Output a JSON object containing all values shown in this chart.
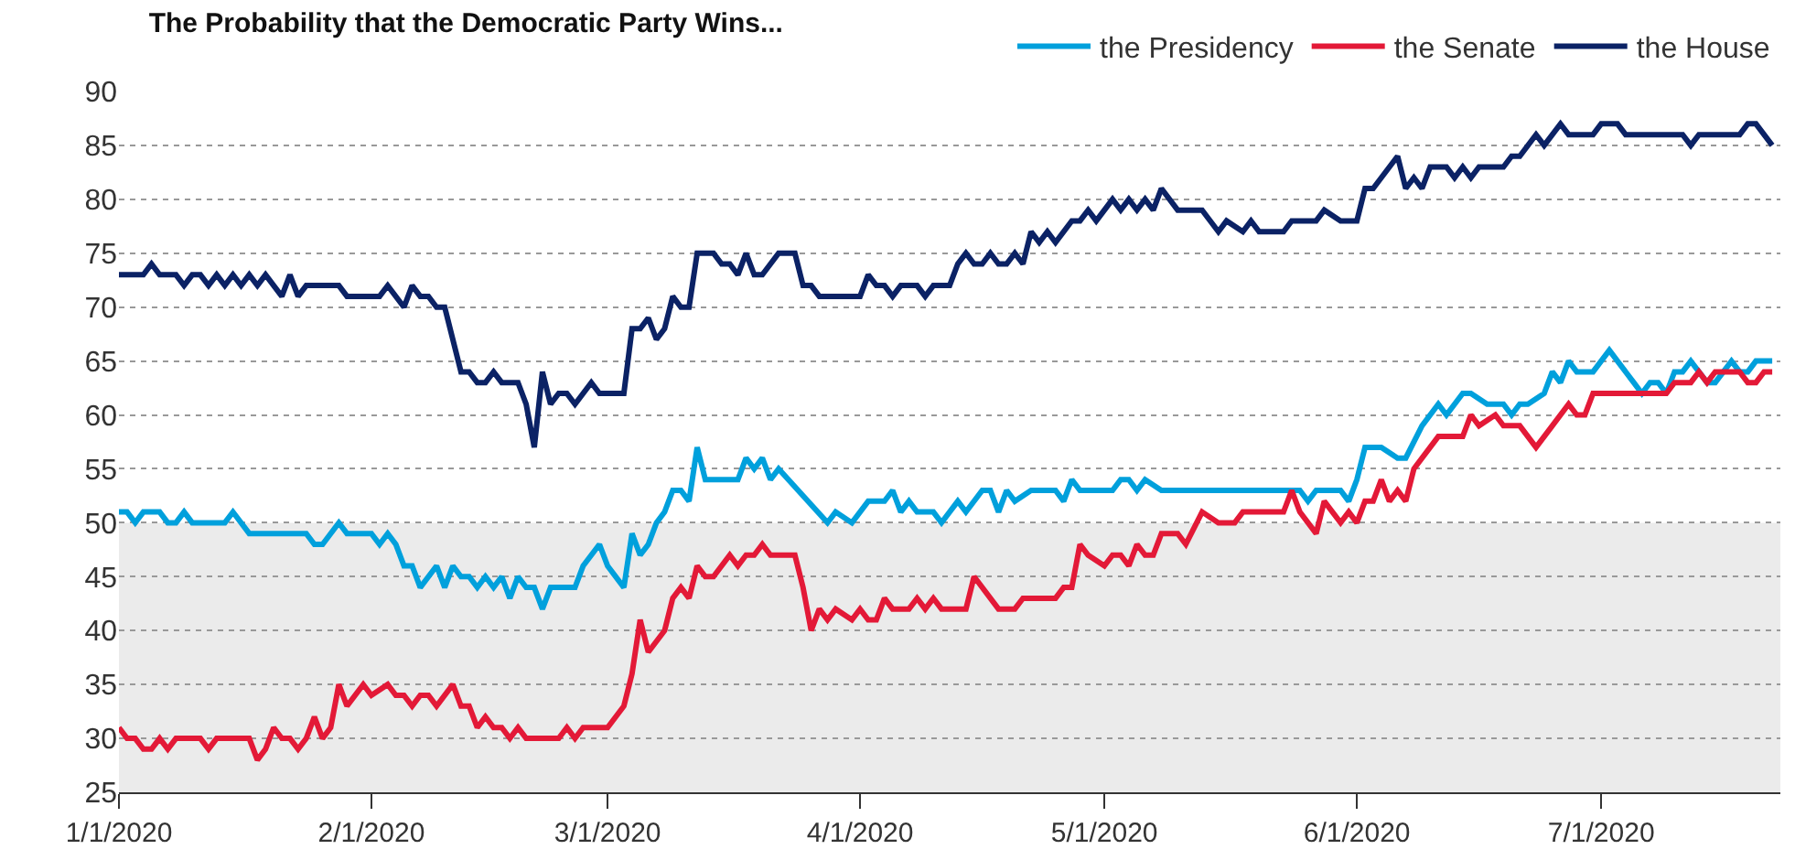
{
  "chart_data": {
    "type": "line",
    "title": "The Probability that the Democratic Party Wins...",
    "xlim": [
      "2020-01-01",
      "2020-07-23"
    ],
    "xticks": [
      {
        "value": "2020-01-01",
        "label": "1/1/2020"
      },
      {
        "value": "2020-02-01",
        "label": "2/1/2020"
      },
      {
        "value": "2020-03-01",
        "label": "3/1/2020"
      },
      {
        "value": "2020-04-01",
        "label": "4/1/2020"
      },
      {
        "value": "2020-05-01",
        "label": "5/1/2020"
      },
      {
        "value": "2020-06-01",
        "label": "6/1/2020"
      },
      {
        "value": "2020-07-01",
        "label": "7/1/2020"
      }
    ],
    "ylim": [
      25,
      90
    ],
    "yticks": [
      25,
      30,
      35,
      40,
      45,
      50,
      55,
      60,
      65,
      70,
      75,
      80,
      85,
      90
    ],
    "grid": "y",
    "legend": "top right",
    "bands": [
      {
        "axis": "y",
        "from": 25,
        "to": 50,
        "color": "#ebebeb"
      }
    ],
    "series": [
      {
        "name": "the Presidency",
        "color": "#00a0dc",
        "x": [
          "2020-01-01",
          "2020-01-02",
          "2020-01-03",
          "2020-01-04",
          "2020-01-06",
          "2020-01-07",
          "2020-01-08",
          "2020-01-09",
          "2020-01-10",
          "2020-01-14",
          "2020-01-15",
          "2020-01-17",
          "2020-01-24",
          "2020-01-25",
          "2020-01-26",
          "2020-01-28",
          "2020-01-29",
          "2020-02-01",
          "2020-02-02",
          "2020-02-03",
          "2020-02-04",
          "2020-02-05",
          "2020-02-06",
          "2020-02-07",
          "2020-02-09",
          "2020-02-10",
          "2020-02-11",
          "2020-02-12",
          "2020-02-13",
          "2020-02-14",
          "2020-02-15",
          "2020-02-16",
          "2020-02-17",
          "2020-02-18",
          "2020-02-19",
          "2020-02-20",
          "2020-02-21",
          "2020-02-22",
          "2020-02-23",
          "2020-02-26",
          "2020-02-27",
          "2020-02-29",
          "2020-03-01",
          "2020-03-03",
          "2020-03-04",
          "2020-03-05",
          "2020-03-06",
          "2020-03-07",
          "2020-03-08",
          "2020-03-09",
          "2020-03-10",
          "2020-03-11",
          "2020-03-12",
          "2020-03-13",
          "2020-03-17",
          "2020-03-18",
          "2020-03-19",
          "2020-03-20",
          "2020-03-21",
          "2020-03-22",
          "2020-03-28",
          "2020-03-29",
          "2020-03-31",
          "2020-04-02",
          "2020-04-04",
          "2020-04-05",
          "2020-04-06",
          "2020-04-07",
          "2020-04-08",
          "2020-04-10",
          "2020-04-11",
          "2020-04-13",
          "2020-04-14",
          "2020-04-16",
          "2020-04-17",
          "2020-04-18",
          "2020-04-19",
          "2020-04-20",
          "2020-04-22",
          "2020-04-25",
          "2020-04-26",
          "2020-04-27",
          "2020-04-28",
          "2020-05-02",
          "2020-05-03",
          "2020-05-04",
          "2020-05-05",
          "2020-05-06",
          "2020-05-08",
          "2020-05-24",
          "2020-05-25",
          "2020-05-26",
          "2020-05-27",
          "2020-05-30",
          "2020-05-31",
          "2020-06-01",
          "2020-06-02",
          "2020-06-04",
          "2020-06-06",
          "2020-06-07",
          "2020-06-09",
          "2020-06-11",
          "2020-06-12",
          "2020-06-14",
          "2020-06-15",
          "2020-06-17",
          "2020-06-19",
          "2020-06-20",
          "2020-06-21",
          "2020-06-22",
          "2020-06-24",
          "2020-06-25",
          "2020-06-26",
          "2020-06-27",
          "2020-06-28",
          "2020-06-30",
          "2020-07-02",
          "2020-07-03",
          "2020-07-05",
          "2020-07-06",
          "2020-07-07",
          "2020-07-08",
          "2020-07-09",
          "2020-07-10",
          "2020-07-11",
          "2020-07-12",
          "2020-07-13",
          "2020-07-14",
          "2020-07-15",
          "2020-07-17",
          "2020-07-18",
          "2020-07-19",
          "2020-07-20",
          "2020-07-22"
        ],
        "values": [
          51,
          51,
          50,
          51,
          51,
          50,
          50,
          51,
          50,
          50,
          51,
          49,
          49,
          48,
          48,
          50,
          49,
          49,
          48,
          49,
          48,
          46,
          46,
          44,
          46,
          44,
          46,
          45,
          45,
          44,
          45,
          44,
          45,
          43,
          45,
          44,
          44,
          42,
          44,
          44,
          46,
          48,
          46,
          44,
          49,
          47,
          48,
          50,
          51,
          53,
          53,
          52,
          57,
          54,
          54,
          56,
          55,
          56,
          54,
          55,
          50,
          51,
          50,
          52,
          52,
          53,
          51,
          52,
          51,
          51,
          50,
          52,
          51,
          53,
          53,
          51,
          53,
          52,
          53,
          53,
          52,
          54,
          53,
          53,
          54,
          54,
          53,
          54,
          53,
          53,
          53,
          52,
          53,
          53,
          52,
          54,
          57,
          57,
          56,
          56,
          59,
          61,
          60,
          62,
          62,
          61,
          61,
          60,
          61,
          61,
          62,
          64,
          63,
          65,
          64,
          64,
          66,
          65,
          63,
          62,
          63,
          63,
          62,
          64,
          64,
          65,
          64,
          63,
          63,
          65,
          64,
          64,
          65,
          65
        ]
      },
      {
        "name": "the Senate",
        "color": "#e31937",
        "x": [
          "2020-01-01",
          "2020-01-02",
          "2020-01-03",
          "2020-01-04",
          "2020-01-05",
          "2020-01-06",
          "2020-01-07",
          "2020-01-08",
          "2020-01-11",
          "2020-01-12",
          "2020-01-13",
          "2020-01-17",
          "2020-01-18",
          "2020-01-19",
          "2020-01-20",
          "2020-01-21",
          "2020-01-22",
          "2020-01-23",
          "2020-01-24",
          "2020-01-25",
          "2020-01-26",
          "2020-01-27",
          "2020-01-28",
          "2020-01-29",
          "2020-01-31",
          "2020-02-01",
          "2020-02-03",
          "2020-02-04",
          "2020-02-05",
          "2020-02-06",
          "2020-02-07",
          "2020-02-08",
          "2020-02-09",
          "2020-02-11",
          "2020-02-12",
          "2020-02-13",
          "2020-02-14",
          "2020-02-15",
          "2020-02-16",
          "2020-02-17",
          "2020-02-18",
          "2020-02-19",
          "2020-02-20",
          "2020-02-24",
          "2020-02-25",
          "2020-02-26",
          "2020-02-27",
          "2020-03-01",
          "2020-03-03",
          "2020-03-04",
          "2020-03-05",
          "2020-03-06",
          "2020-03-08",
          "2020-03-09",
          "2020-03-10",
          "2020-03-11",
          "2020-03-12",
          "2020-03-13",
          "2020-03-14",
          "2020-03-16",
          "2020-03-17",
          "2020-03-18",
          "2020-03-19",
          "2020-03-20",
          "2020-03-21",
          "2020-03-24",
          "2020-03-25",
          "2020-03-26",
          "2020-03-27",
          "2020-03-28",
          "2020-03-29",
          "2020-03-31",
          "2020-04-01",
          "2020-04-02",
          "2020-04-03",
          "2020-04-04",
          "2020-04-05",
          "2020-04-07",
          "2020-04-08",
          "2020-04-09",
          "2020-04-10",
          "2020-04-11",
          "2020-04-14",
          "2020-04-15",
          "2020-04-18",
          "2020-04-20",
          "2020-04-21",
          "2020-04-25",
          "2020-04-26",
          "2020-04-27",
          "2020-04-28",
          "2020-04-29",
          "2020-05-01",
          "2020-05-02",
          "2020-05-03",
          "2020-05-04",
          "2020-05-05",
          "2020-05-06",
          "2020-05-07",
          "2020-05-08",
          "2020-05-10",
          "2020-05-11",
          "2020-05-13",
          "2020-05-15",
          "2020-05-17",
          "2020-05-18",
          "2020-05-23",
          "2020-05-24",
          "2020-05-25",
          "2020-05-27",
          "2020-05-28",
          "2020-05-30",
          "2020-05-31",
          "2020-06-01",
          "2020-06-02",
          "2020-06-03",
          "2020-06-04",
          "2020-06-05",
          "2020-06-06",
          "2020-06-07",
          "2020-06-08",
          "2020-06-11",
          "2020-06-14",
          "2020-06-15",
          "2020-06-16",
          "2020-06-18",
          "2020-06-19",
          "2020-06-21",
          "2020-06-23",
          "2020-06-25",
          "2020-06-27",
          "2020-06-28",
          "2020-06-29",
          "2020-06-30",
          "2020-07-09",
          "2020-07-10",
          "2020-07-12",
          "2020-07-13",
          "2020-07-14",
          "2020-07-15",
          "2020-07-18",
          "2020-07-19",
          "2020-07-20",
          "2020-07-21",
          "2020-07-22"
        ],
        "values": [
          31,
          30,
          30,
          29,
          29,
          30,
          29,
          30,
          30,
          29,
          30,
          30,
          28,
          29,
          31,
          30,
          30,
          29,
          30,
          32,
          30,
          31,
          35,
          33,
          35,
          34,
          35,
          34,
          34,
          33,
          34,
          34,
          33,
          35,
          33,
          33,
          31,
          32,
          31,
          31,
          30,
          31,
          30,
          30,
          31,
          30,
          31,
          31,
          33,
          36,
          41,
          38,
          40,
          43,
          44,
          43,
          46,
          45,
          45,
          47,
          46,
          47,
          47,
          48,
          47,
          47,
          44,
          40,
          42,
          41,
          42,
          41,
          42,
          41,
          41,
          43,
          42,
          42,
          43,
          42,
          43,
          42,
          42,
          45,
          42,
          42,
          43,
          43,
          44,
          44,
          48,
          47,
          46,
          47,
          47,
          46,
          48,
          47,
          47,
          49,
          49,
          48,
          51,
          50,
          50,
          51,
          51,
          53,
          51,
          49,
          52,
          50,
          51,
          50,
          52,
          52,
          54,
          52,
          53,
          52,
          55,
          58,
          58,
          60,
          59,
          60,
          59,
          59,
          57,
          59,
          61,
          60,
          60,
          62,
          62,
          63,
          63,
          64,
          63,
          64,
          64,
          63,
          63,
          64,
          64
        ]
      },
      {
        "name": "the House",
        "color": "#0b2265",
        "x": [
          "2020-01-01",
          "2020-01-04",
          "2020-01-05",
          "2020-01-06",
          "2020-01-08",
          "2020-01-09",
          "2020-01-10",
          "2020-01-11",
          "2020-01-12",
          "2020-01-13",
          "2020-01-14",
          "2020-01-15",
          "2020-01-16",
          "2020-01-17",
          "2020-01-18",
          "2020-01-19",
          "2020-01-21",
          "2020-01-22",
          "2020-01-23",
          "2020-01-24",
          "2020-01-28",
          "2020-01-29",
          "2020-02-02",
          "2020-02-03",
          "2020-02-05",
          "2020-02-06",
          "2020-02-07",
          "2020-02-08",
          "2020-02-09",
          "2020-02-10",
          "2020-02-12",
          "2020-02-13",
          "2020-02-14",
          "2020-02-15",
          "2020-02-16",
          "2020-02-17",
          "2020-02-19",
          "2020-02-20",
          "2020-02-21",
          "2020-02-22",
          "2020-02-23",
          "2020-02-24",
          "2020-02-25",
          "2020-02-26",
          "2020-02-28",
          "2020-02-29",
          "2020-03-03",
          "2020-03-04",
          "2020-03-05",
          "2020-03-06",
          "2020-03-07",
          "2020-03-08",
          "2020-03-09",
          "2020-03-10",
          "2020-03-11",
          "2020-03-12",
          "2020-03-14",
          "2020-03-15",
          "2020-03-16",
          "2020-03-17",
          "2020-03-18",
          "2020-03-19",
          "2020-03-20",
          "2020-03-22",
          "2020-03-24",
          "2020-03-25",
          "2020-03-26",
          "2020-03-27",
          "2020-04-01",
          "2020-04-02",
          "2020-04-03",
          "2020-04-04",
          "2020-04-05",
          "2020-04-06",
          "2020-04-08",
          "2020-04-09",
          "2020-04-10",
          "2020-04-12",
          "2020-04-13",
          "2020-04-14",
          "2020-04-15",
          "2020-04-16",
          "2020-04-17",
          "2020-04-18",
          "2020-04-19",
          "2020-04-20",
          "2020-04-21",
          "2020-04-22",
          "2020-04-23",
          "2020-04-24",
          "2020-04-25",
          "2020-04-27",
          "2020-04-28",
          "2020-04-29",
          "2020-04-30",
          "2020-05-02",
          "2020-05-03",
          "2020-05-04",
          "2020-05-05",
          "2020-05-06",
          "2020-05-07",
          "2020-05-08",
          "2020-05-10",
          "2020-05-13",
          "2020-05-15",
          "2020-05-16",
          "2020-05-18",
          "2020-05-19",
          "2020-05-20",
          "2020-05-23",
          "2020-05-24",
          "2020-05-27",
          "2020-05-28",
          "2020-05-30",
          "2020-06-01",
          "2020-06-02",
          "2020-06-03",
          "2020-06-04",
          "2020-06-06",
          "2020-06-07",
          "2020-06-08",
          "2020-06-09",
          "2020-06-10",
          "2020-06-12",
          "2020-06-13",
          "2020-06-14",
          "2020-06-15",
          "2020-06-16",
          "2020-06-19",
          "2020-06-20",
          "2020-06-21",
          "2020-06-23",
          "2020-06-24",
          "2020-06-26",
          "2020-06-27",
          "2020-06-30",
          "2020-07-01",
          "2020-07-03",
          "2020-07-04",
          "2020-07-11",
          "2020-07-12",
          "2020-07-13",
          "2020-07-18",
          "2020-07-19",
          "2020-07-20",
          "2020-07-22"
        ],
        "values": [
          73,
          73,
          74,
          73,
          73,
          72,
          73,
          73,
          72,
          73,
          72,
          73,
          72,
          73,
          72,
          73,
          71,
          73,
          71,
          72,
          72,
          71,
          71,
          72,
          70,
          72,
          71,
          71,
          70,
          70,
          64,
          64,
          63,
          63,
          64,
          63,
          63,
          61,
          57,
          64,
          61,
          62,
          62,
          61,
          63,
          62,
          62,
          68,
          68,
          69,
          67,
          68,
          71,
          70,
          70,
          75,
          75,
          74,
          74,
          73,
          75,
          73,
          73,
          75,
          75,
          72,
          72,
          71,
          71,
          73,
          72,
          72,
          71,
          72,
          72,
          71,
          72,
          72,
          74,
          75,
          74,
          74,
          75,
          74,
          74,
          75,
          74,
          77,
          76,
          77,
          76,
          78,
          78,
          79,
          78,
          80,
          79,
          80,
          79,
          80,
          79,
          81,
          79,
          79,
          77,
          78,
          77,
          78,
          77,
          77,
          78,
          78,
          79,
          78,
          78,
          81,
          81,
          82,
          84,
          81,
          82,
          81,
          83,
          83,
          82,
          83,
          82,
          83,
          83,
          84,
          84,
          86,
          85,
          87,
          86,
          86,
          87,
          87,
          86,
          86,
          85,
          86,
          86,
          87,
          87,
          85
        ]
      }
    ]
  }
}
